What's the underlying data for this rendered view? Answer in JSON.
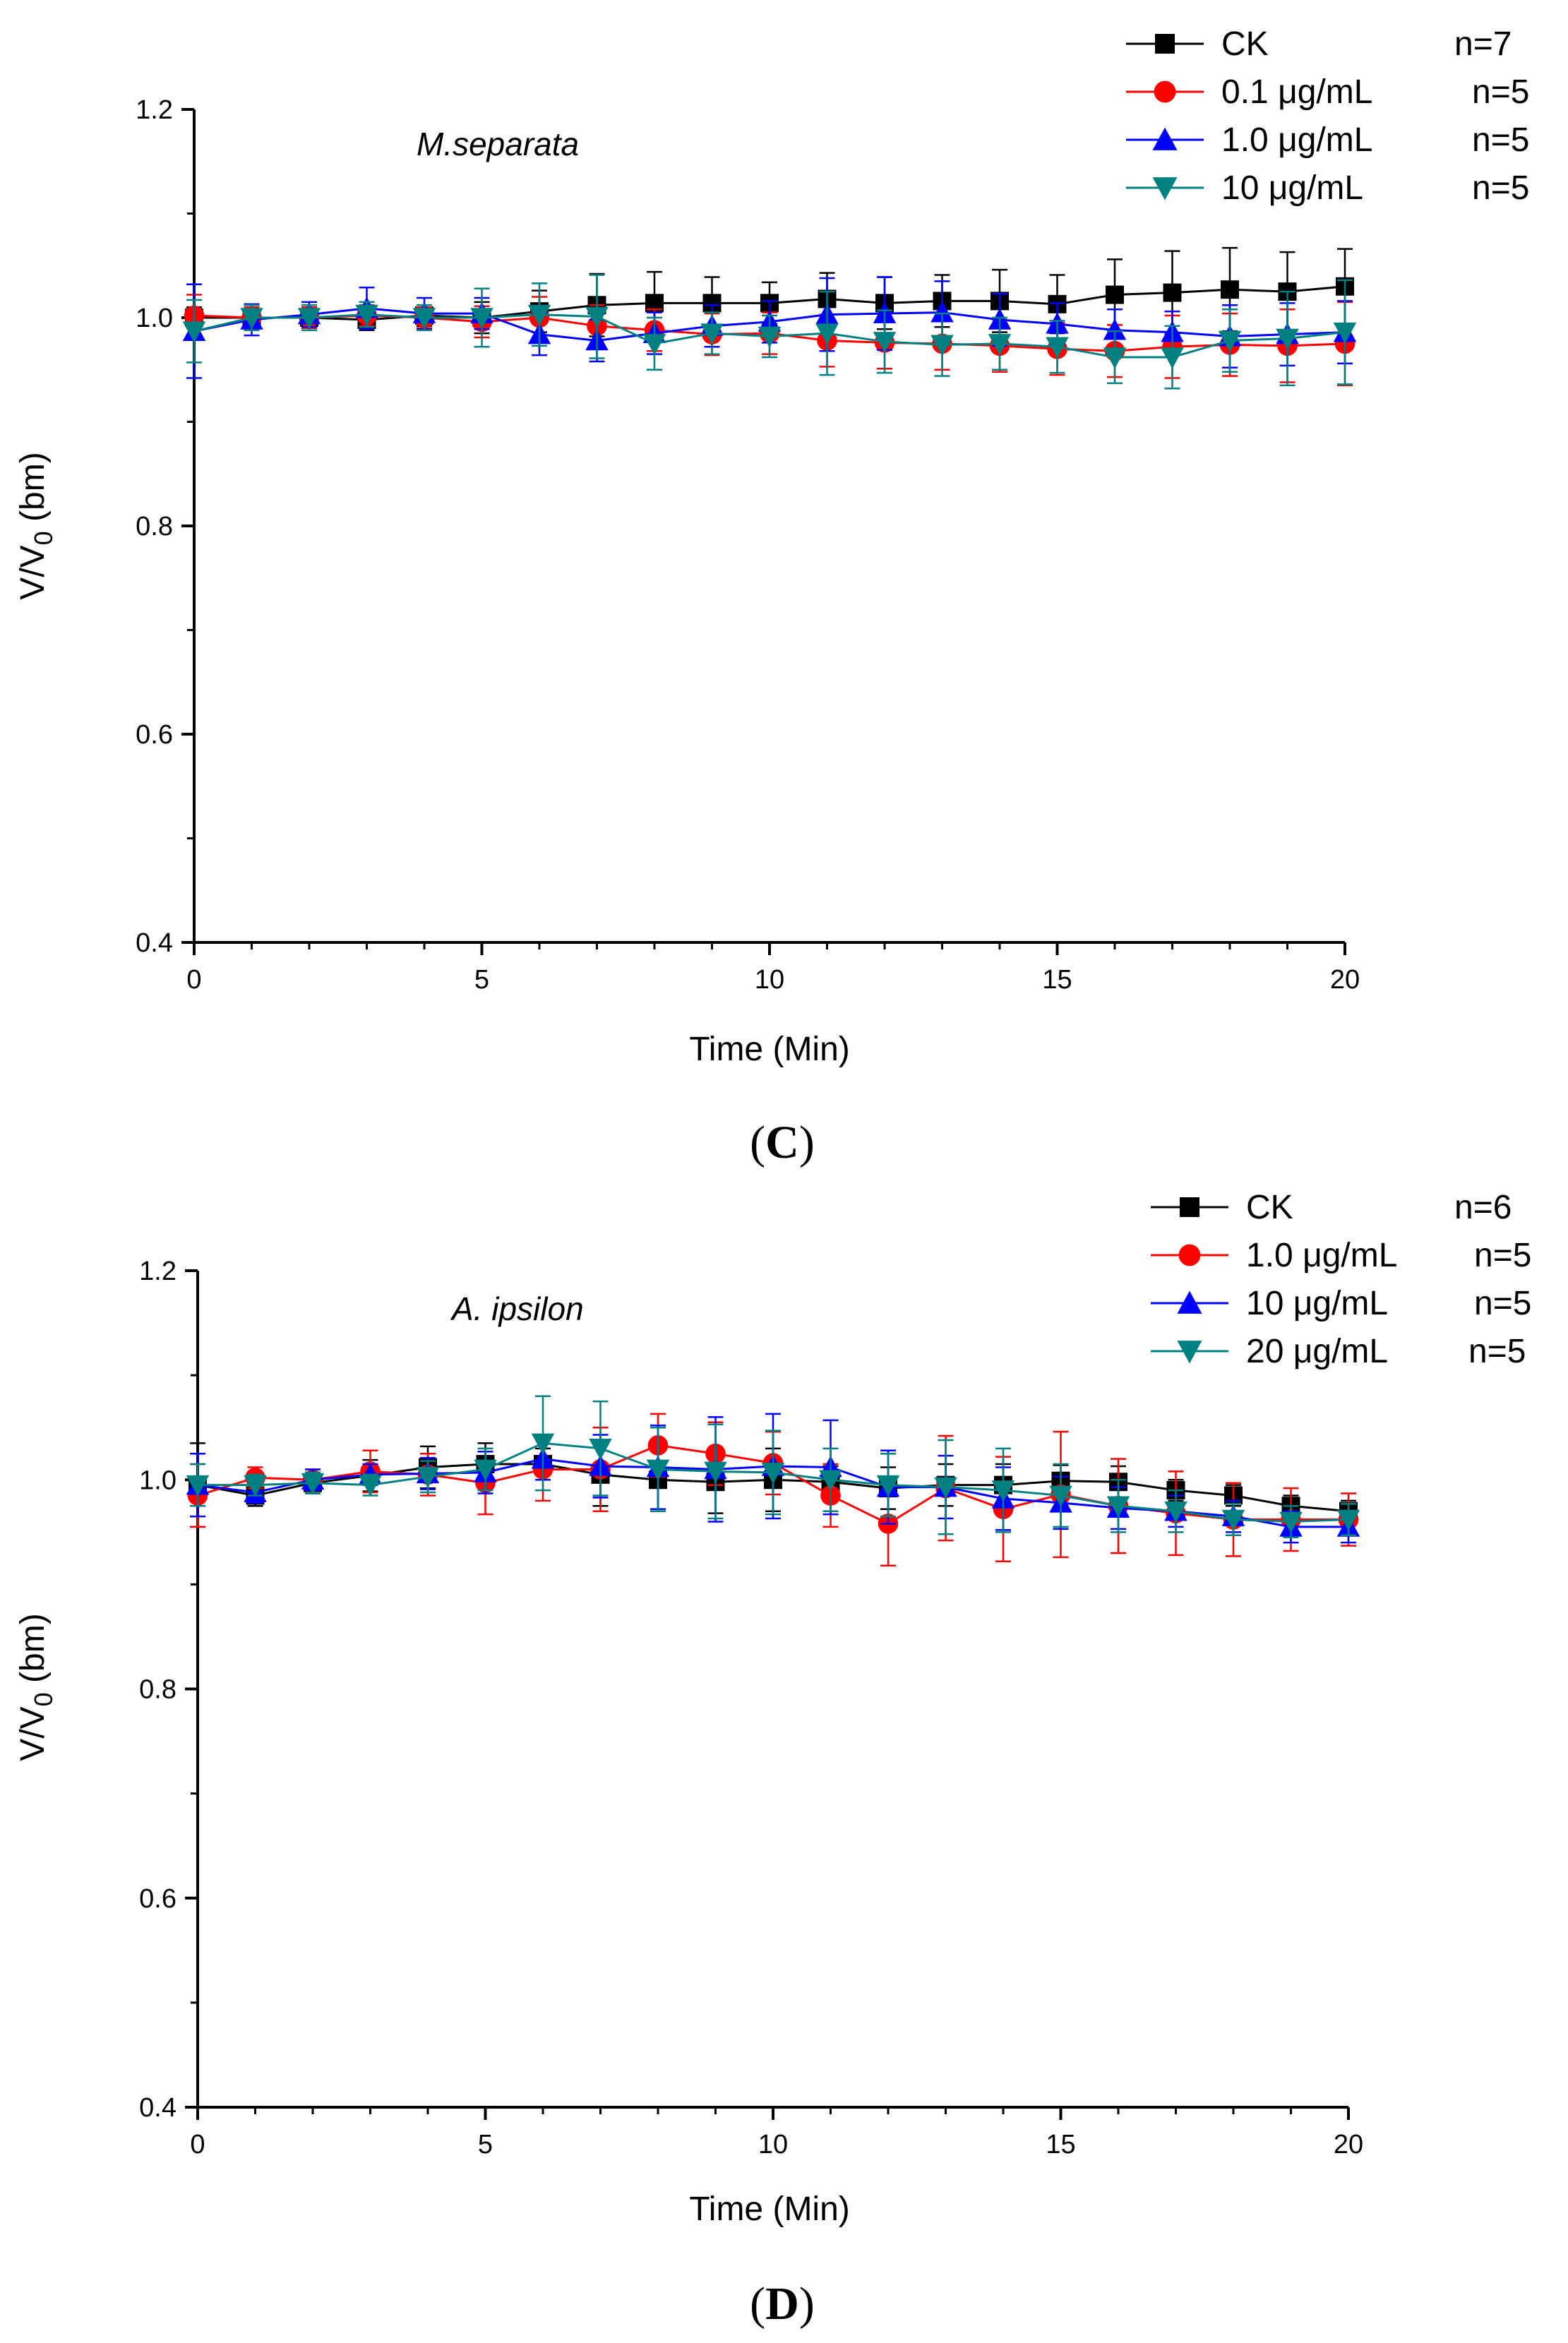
{
  "figure": {
    "panels": [
      "C",
      "D"
    ]
  },
  "chart_data": [
    {
      "type": "line",
      "panel_label": "(C)",
      "panel_letter": "C",
      "species": "M.separata",
      "xlabel": "Time (Min)",
      "ylabel": "V/V",
      "ylabel_sub": "0",
      "ylabel_suffix": " (bm)",
      "xlim": [
        0,
        20
      ],
      "ylim": [
        0.4,
        1.2
      ],
      "xticks": [
        0,
        5,
        10,
        15,
        20
      ],
      "yticks": [
        0.4,
        0.6,
        0.8,
        1.0,
        1.2
      ],
      "x": [
        0,
        1,
        2,
        3,
        4,
        5,
        6,
        7,
        8,
        9,
        10,
        11,
        12,
        13,
        14,
        15,
        16,
        17,
        18,
        19,
        20
      ],
      "series": [
        {
          "name": "CK",
          "n": "n=7",
          "color": "#000000",
          "marker": "square",
          "values": [
            1.0,
            1.0,
            1.0,
            0.998,
            1.002,
            1.0,
            1.006,
            1.012,
            1.014,
            1.014,
            1.014,
            1.018,
            1.014,
            1.016,
            1.016,
            1.013,
            1.022,
            1.024,
            1.027,
            1.025,
            1.03
          ],
          "errors": [
            0.01,
            0.01,
            0.01,
            0.01,
            0.01,
            0.015,
            0.02,
            0.03,
            0.03,
            0.025,
            0.02,
            0.025,
            0.025,
            0.025,
            0.03,
            0.028,
            0.034,
            0.04,
            0.04,
            0.038,
            0.036
          ]
        },
        {
          "name": "0.1 μg/mL",
          "n": "n=5",
          "color": "#ff0000",
          "marker": "circle",
          "values": [
            1.002,
            1.0,
            1.0,
            1.002,
            1.0,
            0.996,
            1.0,
            0.992,
            0.988,
            0.984,
            0.985,
            0.978,
            0.976,
            0.975,
            0.973,
            0.97,
            0.968,
            0.972,
            0.974,
            0.973,
            0.975
          ],
          "errors": [
            0.02,
            0.01,
            0.01,
            0.01,
            0.01,
            0.015,
            0.02,
            0.02,
            0.02,
            0.02,
            0.02,
            0.025,
            0.025,
            0.025,
            0.025,
            0.025,
            0.025,
            0.03,
            0.03,
            0.035,
            0.04
          ]
        },
        {
          "name": "1.0 μg/mL",
          "n": "n=5",
          "color": "#0000ff",
          "marker": "triangle-up",
          "values": [
            0.987,
            0.998,
            1.003,
            1.009,
            1.004,
            1.004,
            0.984,
            0.978,
            0.985,
            0.992,
            0.996,
            1.003,
            1.004,
            1.005,
            0.998,
            0.994,
            0.988,
            0.986,
            0.982,
            0.984,
            0.986
          ],
          "errors": [
            0.045,
            0.015,
            0.012,
            0.02,
            0.015,
            0.015,
            0.02,
            0.02,
            0.02,
            0.02,
            0.02,
            0.035,
            0.035,
            0.03,
            0.025,
            0.02,
            0.02,
            0.02,
            0.03,
            0.03,
            0.03
          ]
        },
        {
          "name": "10  μg/mL",
          "n": "n=5",
          "color": "#008080",
          "marker": "triangle-down",
          "values": [
            0.987,
            1.0,
            1.0,
            1.003,
            1.0,
            1.0,
            1.003,
            1.001,
            0.975,
            0.985,
            0.982,
            0.985,
            0.977,
            0.974,
            0.975,
            0.972,
            0.962,
            0.962,
            0.978,
            0.98,
            0.986
          ],
          "errors": [
            0.03,
            0.012,
            0.012,
            0.012,
            0.012,
            0.028,
            0.03,
            0.04,
            0.025,
            0.02,
            0.02,
            0.04,
            0.03,
            0.03,
            0.025,
            0.025,
            0.025,
            0.03,
            0.03,
            0.045,
            0.05
          ]
        }
      ]
    },
    {
      "type": "line",
      "panel_label": "(D)",
      "panel_letter": "D",
      "species": "A. ipsilon",
      "xlabel": "Time (Min)",
      "ylabel": "V/V",
      "ylabel_sub": "0",
      "ylabel_suffix": " (bm)",
      "xlim": [
        0,
        20
      ],
      "ylim": [
        0.4,
        1.2
      ],
      "xticks": [
        0,
        5,
        10,
        15,
        20
      ],
      "yticks": [
        0.4,
        0.6,
        0.8,
        1.0,
        1.2
      ],
      "x": [
        0,
        1,
        2,
        3,
        4,
        5,
        6,
        7,
        8,
        9,
        10,
        11,
        12,
        13,
        14,
        15,
        16,
        17,
        18,
        19,
        20
      ],
      "series": [
        {
          "name": "CK",
          "n": "n=6",
          "color": "#000000",
          "marker": "square",
          "values": [
            0.995,
            0.985,
            0.997,
            1.004,
            1.012,
            1.015,
            1.015,
            1.005,
            1.0,
            0.998,
            1.0,
            0.998,
            0.992,
            0.995,
            0.995,
            0.999,
            0.998,
            0.99,
            0.985,
            0.975,
            0.97
          ],
          "errors": [
            0.04,
            0.01,
            0.01,
            0.015,
            0.02,
            0.02,
            0.015,
            0.03,
            0.03,
            0.03,
            0.03,
            0.015,
            0.02,
            0.02,
            0.02,
            0.015,
            0.015,
            0.01,
            0.01,
            0.01,
            0.01
          ]
        },
        {
          "name": "1.0 μg/mL",
          "n": "n=5",
          "color": "#ff0000",
          "marker": "circle",
          "values": [
            0.985,
            1.002,
            1.0,
            1.008,
            1.005,
            0.997,
            1.01,
            1.01,
            1.033,
            1.025,
            1.016,
            0.985,
            0.958,
            0.992,
            0.972,
            0.986,
            0.975,
            0.968,
            0.962,
            0.962,
            0.962
          ],
          "errors": [
            0.03,
            0.01,
            0.01,
            0.02,
            0.02,
            0.03,
            0.03,
            0.04,
            0.03,
            0.03,
            0.03,
            0.03,
            0.04,
            0.05,
            0.05,
            0.06,
            0.045,
            0.04,
            0.035,
            0.03,
            0.025
          ]
        },
        {
          "name": "10  μg/mL",
          "n": "n=5",
          "color": "#0000ff",
          "marker": "triangle-up",
          "values": [
            0.995,
            0.988,
            1.0,
            1.005,
            1.006,
            1.007,
            1.02,
            1.013,
            1.012,
            1.01,
            1.013,
            1.012,
            0.993,
            0.993,
            0.982,
            0.978,
            0.973,
            0.97,
            0.965,
            0.955,
            0.955
          ],
          "errors": [
            0.03,
            0.01,
            0.01,
            0.01,
            0.015,
            0.02,
            0.02,
            0.03,
            0.04,
            0.05,
            0.05,
            0.045,
            0.035,
            0.03,
            0.03,
            0.025,
            0.02,
            0.015,
            0.015,
            0.015,
            0.015
          ]
        },
        {
          "name": "20  μg/mL",
          "n": "n=5",
          "color": "#008080",
          "marker": "triangle-down",
          "values": [
            0.995,
            0.995,
            0.997,
            0.995,
            1.003,
            1.01,
            1.035,
            1.03,
            1.01,
            1.008,
            1.007,
            1.0,
            0.995,
            0.993,
            0.99,
            0.985,
            0.975,
            0.97,
            0.962,
            0.96,
            0.962
          ],
          "errors": [
            0.02,
            0.01,
            0.01,
            0.01,
            0.015,
            0.02,
            0.045,
            0.045,
            0.04,
            0.045,
            0.04,
            0.03,
            0.03,
            0.045,
            0.04,
            0.03,
            0.025,
            0.02,
            0.015,
            0.015,
            0.015
          ]
        }
      ]
    }
  ]
}
